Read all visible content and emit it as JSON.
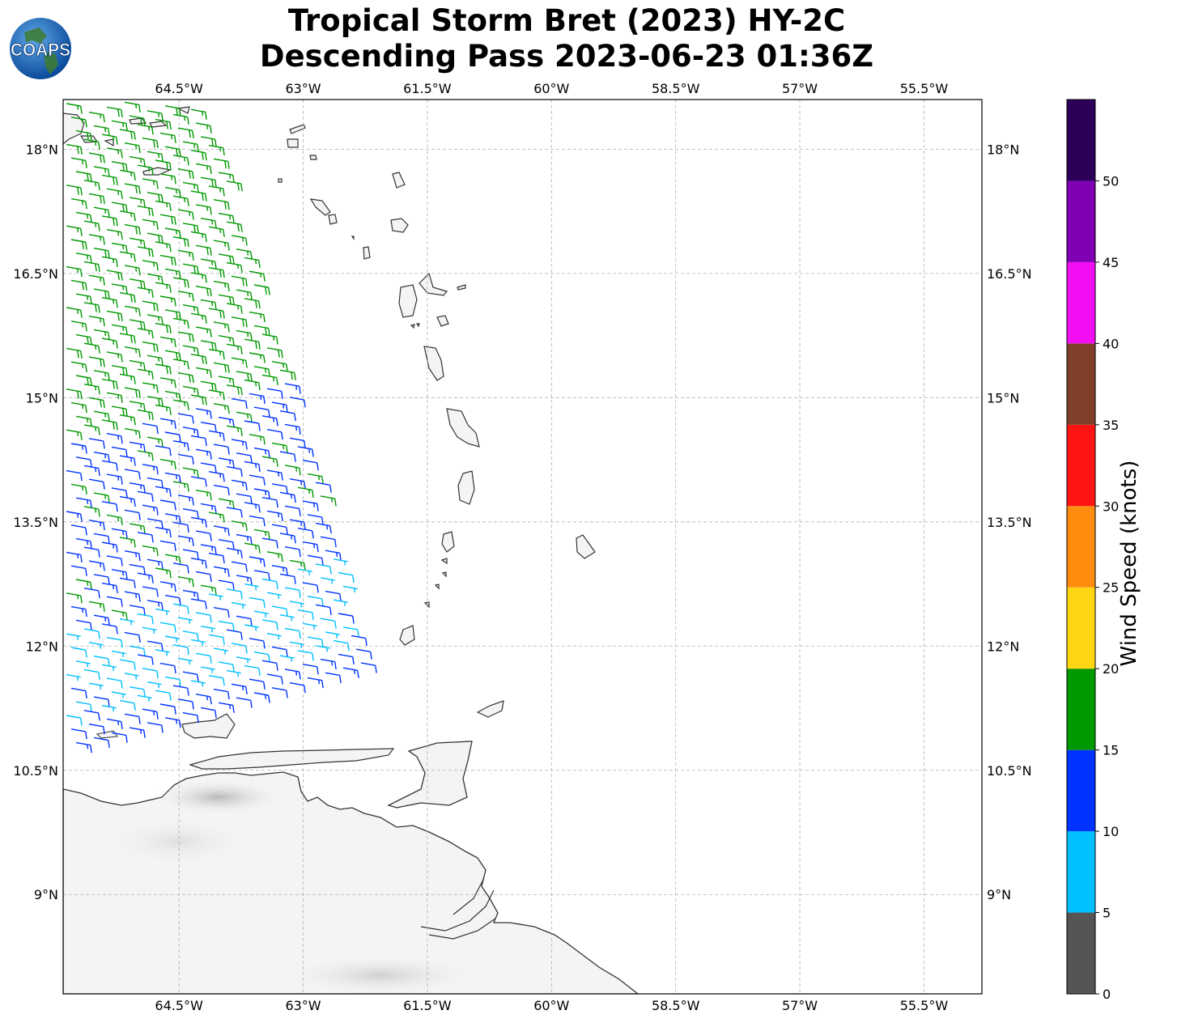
{
  "title": {
    "line1": "Tropical Storm Bret (2023) HY-2C",
    "line2": "Descending Pass 2023-06-23 01:36Z"
  },
  "logo": {
    "text": "COAPS",
    "icon": "globe-logo"
  },
  "map": {
    "lon_range": [
      -65.9,
      -54.8
    ],
    "lat_range": [
      7.8,
      18.6
    ],
    "lon_ticks": [
      {
        "value": -64.5,
        "label": "64.5°W"
      },
      {
        "value": -63.0,
        "label": "63°W"
      },
      {
        "value": -61.5,
        "label": "61.5°W"
      },
      {
        "value": -60.0,
        "label": "60°W"
      },
      {
        "value": -58.5,
        "label": "58.5°W"
      },
      {
        "value": -57.0,
        "label": "57°W"
      },
      {
        "value": -55.5,
        "label": "55.5°W"
      }
    ],
    "lat_ticks": [
      {
        "value": 18.0,
        "label": "18°N"
      },
      {
        "value": 16.5,
        "label": "16.5°N"
      },
      {
        "value": 15.0,
        "label": "15°N"
      },
      {
        "value": 13.5,
        "label": "13.5°N"
      },
      {
        "value": 12.0,
        "label": "12°N"
      },
      {
        "value": 10.5,
        "label": "10.5°N"
      },
      {
        "value": 9.0,
        "label": "9°N"
      }
    ],
    "gridlines": true,
    "colors": {
      "coast": "#333333",
      "grid": "#b0b0b0",
      "land_shade": "#e6e6e6"
    }
  },
  "colorbar": {
    "label": "Wind Speed (knots)",
    "bins": [
      {
        "min": 0,
        "max": 5,
        "color": "#555555"
      },
      {
        "min": 5,
        "max": 10,
        "color": "#00bfff"
      },
      {
        "min": 10,
        "max": 15,
        "color": "#0033ff"
      },
      {
        "min": 15,
        "max": 20,
        "color": "#009900"
      },
      {
        "min": 20,
        "max": 25,
        "color": "#ffd614"
      },
      {
        "min": 25,
        "max": 30,
        "color": "#ff8c0f"
      },
      {
        "min": 30,
        "max": 35,
        "color": "#ff1414"
      },
      {
        "min": 35,
        "max": 40,
        "color": "#7f3f2a"
      },
      {
        "min": 40,
        "max": 45,
        "color": "#f20ef2"
      },
      {
        "min": 45,
        "max": 50,
        "color": "#8000b3"
      },
      {
        "min": 50,
        "max": 55,
        "color": "#2c0059"
      }
    ],
    "tick_labels": [
      "0",
      "5",
      "10",
      "15",
      "20",
      "25",
      "30",
      "35",
      "40",
      "45",
      "50"
    ]
  },
  "wind_swath": {
    "description_source": "HY-2C scatterometer wind barbs",
    "direction_from_deg": 100,
    "speed_field": [
      {
        "lat_min": 14.6,
        "lat_max": 18.6,
        "speed_kt": 17
      },
      {
        "lat_min": 12.3,
        "lat_max": 14.6,
        "speed_kt": 13
      },
      {
        "lat_min": 11.0,
        "lat_max": 12.3,
        "speed_kt": 8
      },
      {
        "lat_min": 10.5,
        "lat_max": 11.0,
        "speed_kt": 12
      }
    ]
  }
}
